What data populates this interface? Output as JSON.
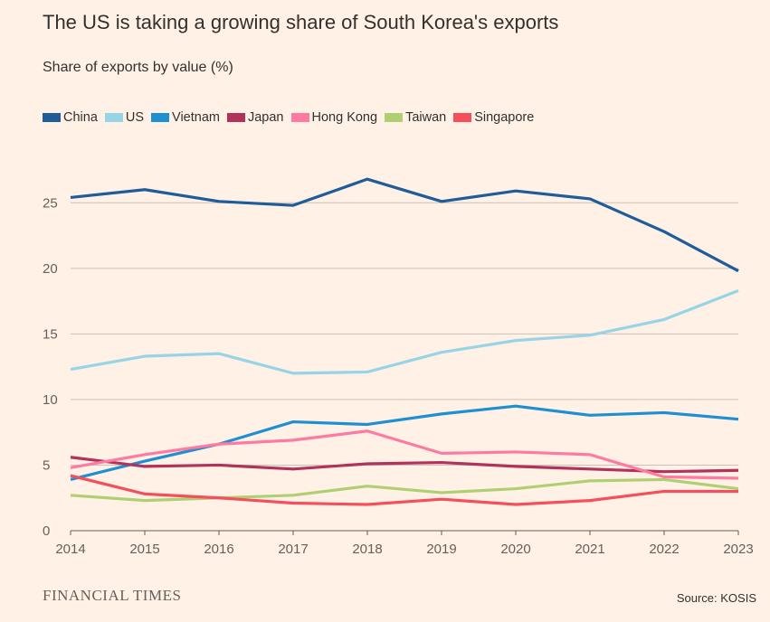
{
  "chart_data": {
    "type": "line",
    "title": "The US is taking a growing share of South Korea's exports",
    "subtitle": "Share of exports by value (%)",
    "x": [
      2014,
      2015,
      2016,
      2017,
      2018,
      2019,
      2020,
      2021,
      2022,
      2023
    ],
    "ylim": [
      0,
      27.5
    ],
    "yticks": [
      0,
      5,
      10,
      15,
      20,
      25
    ],
    "grid": true,
    "legend_position": "top",
    "series": [
      {
        "name": "China",
        "color": "#1f5c99",
        "values": [
          25.4,
          26.0,
          25.1,
          24.8,
          26.8,
          25.1,
          25.9,
          25.3,
          22.8,
          19.8
        ]
      },
      {
        "name": "US",
        "color": "#96d4e6",
        "values": [
          12.3,
          13.3,
          13.5,
          12.0,
          12.1,
          13.6,
          14.5,
          14.9,
          16.1,
          18.3
        ]
      },
      {
        "name": "Vietnam",
        "color": "#1e8fd1",
        "values": [
          3.9,
          5.3,
          6.6,
          8.3,
          8.1,
          8.9,
          9.5,
          8.8,
          9.0,
          8.5
        ]
      },
      {
        "name": "Japan",
        "color": "#b1325b",
        "values": [
          5.6,
          4.9,
          5.0,
          4.7,
          5.1,
          5.2,
          4.9,
          4.7,
          4.5,
          4.6
        ]
      },
      {
        "name": "Hong Kong",
        "color": "#ff7aa1",
        "values": [
          4.8,
          5.8,
          6.6,
          6.9,
          7.6,
          5.9,
          6.0,
          5.8,
          4.1,
          4.0
        ]
      },
      {
        "name": "Taiwan",
        "color": "#b0cf72",
        "values": [
          2.7,
          2.3,
          2.5,
          2.7,
          3.4,
          2.9,
          3.2,
          3.8,
          3.9,
          3.2
        ]
      },
      {
        "name": "Singapore",
        "color": "#f44f5b",
        "values": [
          4.2,
          2.8,
          2.5,
          2.1,
          2.0,
          2.4,
          2.0,
          2.3,
          3.0,
          3.0
        ]
      }
    ]
  },
  "footer": {
    "brand": "FINANCIAL TIMES",
    "source": "Source: KOSIS"
  }
}
